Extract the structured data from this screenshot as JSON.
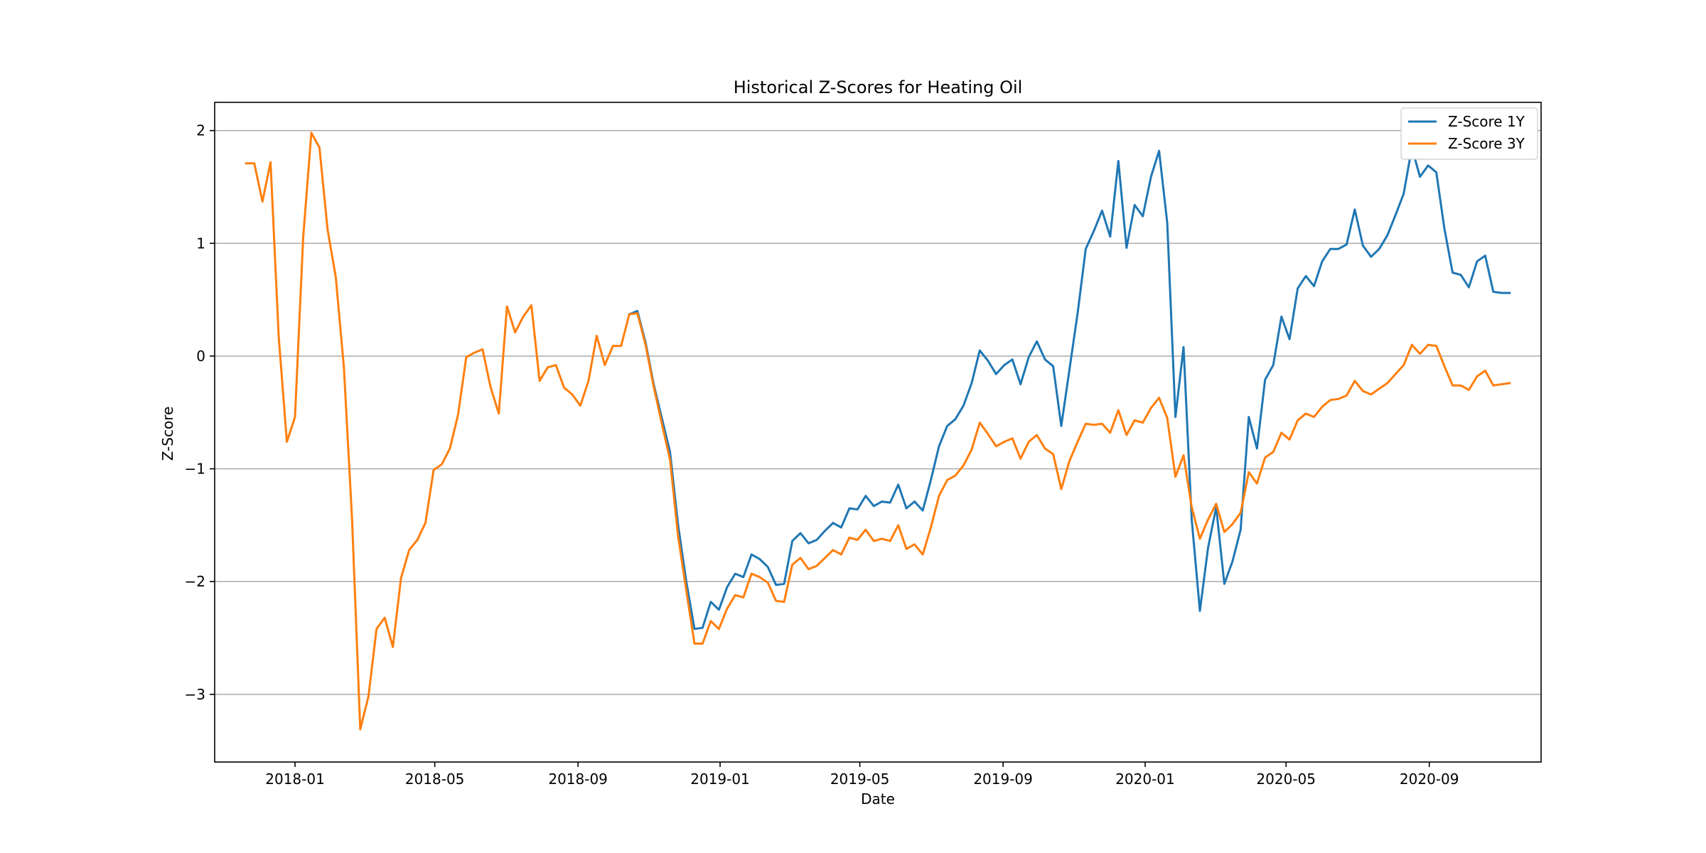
{
  "chart_data": {
    "type": "line",
    "title": "Historical Z-Scores for Heating Oil",
    "xlabel": "Date",
    "ylabel": "Z-Score",
    "grid": "horizontal",
    "legend_position": "top-right",
    "xlim": [
      "2017-10-24",
      "2020-12-06"
    ],
    "ylim": [
      -3.6,
      2.25
    ],
    "x_ticks": [
      "2018-01",
      "2018-05",
      "2018-09",
      "2019-01",
      "2019-05",
      "2019-09",
      "2020-01",
      "2020-05",
      "2020-09"
    ],
    "y_ticks": [
      2,
      1,
      0,
      -1,
      -2,
      -3
    ],
    "y_tick_labels": [
      "2",
      "1",
      "0",
      "−1",
      "−2",
      "−3"
    ],
    "series": [
      {
        "name": "Z-Score 1Y",
        "color": "#1f77b4",
        "points": [
          [
            "2018-10-15",
            0.37
          ],
          [
            "2018-10-22",
            0.4
          ],
          [
            "2018-10-29",
            0.12
          ],
          [
            "2018-11-05",
            -0.25
          ],
          [
            "2018-11-12",
            -0.55
          ],
          [
            "2018-11-19",
            -0.85
          ],
          [
            "2018-11-26",
            -1.5
          ],
          [
            "2018-12-03",
            -2.0
          ],
          [
            "2018-12-10",
            -2.42
          ],
          [
            "2018-12-17",
            -2.41
          ],
          [
            "2018-12-24",
            -2.18
          ],
          [
            "2018-12-31",
            -2.25
          ],
          [
            "2019-01-07",
            -2.05
          ],
          [
            "2019-01-14",
            -1.93
          ],
          [
            "2019-01-21",
            -1.96
          ],
          [
            "2019-01-28",
            -1.76
          ],
          [
            "2019-02-04",
            -1.8
          ],
          [
            "2019-02-11",
            -1.87
          ],
          [
            "2019-02-18",
            -2.03
          ],
          [
            "2019-02-25",
            -2.02
          ],
          [
            "2019-03-04",
            -1.64
          ],
          [
            "2019-03-11",
            -1.57
          ],
          [
            "2019-03-18",
            -1.66
          ],
          [
            "2019-03-25",
            -1.63
          ],
          [
            "2019-04-01",
            -1.55
          ],
          [
            "2019-04-08",
            -1.48
          ],
          [
            "2019-04-15",
            -1.52
          ],
          [
            "2019-04-22",
            -1.35
          ],
          [
            "2019-04-29",
            -1.36
          ],
          [
            "2019-05-06",
            -1.24
          ],
          [
            "2019-05-13",
            -1.33
          ],
          [
            "2019-05-20",
            -1.29
          ],
          [
            "2019-05-27",
            -1.3
          ],
          [
            "2019-06-03",
            -1.14
          ],
          [
            "2019-06-10",
            -1.35
          ],
          [
            "2019-06-17",
            -1.29
          ],
          [
            "2019-06-24",
            -1.37
          ],
          [
            "2019-07-01",
            -1.1
          ],
          [
            "2019-07-08",
            -0.8
          ],
          [
            "2019-07-15",
            -0.62
          ],
          [
            "2019-07-22",
            -0.56
          ],
          [
            "2019-07-29",
            -0.44
          ],
          [
            "2019-08-05",
            -0.24
          ],
          [
            "2019-08-12",
            0.05
          ],
          [
            "2019-08-19",
            -0.04
          ],
          [
            "2019-08-26",
            -0.16
          ],
          [
            "2019-09-02",
            -0.08
          ],
          [
            "2019-09-09",
            -0.03
          ],
          [
            "2019-09-16",
            -0.25
          ],
          [
            "2019-09-23",
            -0.01
          ],
          [
            "2019-09-30",
            0.13
          ],
          [
            "2019-10-07",
            -0.03
          ],
          [
            "2019-10-14",
            -0.09
          ],
          [
            "2019-10-21",
            -0.62
          ],
          [
            "2019-10-28",
            -0.12
          ],
          [
            "2019-11-04",
            0.38
          ],
          [
            "2019-11-11",
            0.95
          ],
          [
            "2019-11-18",
            1.11
          ],
          [
            "2019-11-25",
            1.29
          ],
          [
            "2019-12-02",
            1.06
          ],
          [
            "2019-12-09",
            1.73
          ],
          [
            "2019-12-16",
            0.96
          ],
          [
            "2019-12-23",
            1.34
          ],
          [
            "2019-12-30",
            1.24
          ],
          [
            "2020-01-06",
            1.59
          ],
          [
            "2020-01-13",
            1.82
          ],
          [
            "2020-01-20",
            1.18
          ],
          [
            "2020-01-27",
            -0.54
          ],
          [
            "2020-02-03",
            0.08
          ],
          [
            "2020-02-10",
            -1.45
          ],
          [
            "2020-02-17",
            -2.26
          ],
          [
            "2020-02-24",
            -1.7
          ],
          [
            "2020-03-02",
            -1.34
          ],
          [
            "2020-03-09",
            -2.02
          ],
          [
            "2020-03-16",
            -1.82
          ],
          [
            "2020-03-23",
            -1.54
          ],
          [
            "2020-03-30",
            -0.54
          ],
          [
            "2020-04-06",
            -0.82
          ],
          [
            "2020-04-13",
            -0.21
          ],
          [
            "2020-04-20",
            -0.08
          ],
          [
            "2020-04-27",
            0.35
          ],
          [
            "2020-05-04",
            0.15
          ],
          [
            "2020-05-11",
            0.6
          ],
          [
            "2020-05-18",
            0.71
          ],
          [
            "2020-05-25",
            0.62
          ],
          [
            "2020-06-01",
            0.84
          ],
          [
            "2020-06-08",
            0.95
          ],
          [
            "2020-06-15",
            0.95
          ],
          [
            "2020-06-22",
            0.99
          ],
          [
            "2020-06-29",
            1.3
          ],
          [
            "2020-07-06",
            0.98
          ],
          [
            "2020-07-13",
            0.88
          ],
          [
            "2020-07-20",
            0.95
          ],
          [
            "2020-07-27",
            1.07
          ],
          [
            "2020-08-03",
            1.25
          ],
          [
            "2020-08-10",
            1.44
          ],
          [
            "2020-08-17",
            1.85
          ],
          [
            "2020-08-24",
            1.59
          ],
          [
            "2020-08-31",
            1.69
          ],
          [
            "2020-09-07",
            1.63
          ],
          [
            "2020-09-14",
            1.13
          ],
          [
            "2020-09-21",
            0.74
          ],
          [
            "2020-09-28",
            0.72
          ],
          [
            "2020-10-05",
            0.61
          ],
          [
            "2020-10-12",
            0.84
          ],
          [
            "2020-10-19",
            0.89
          ],
          [
            "2020-10-26",
            0.57
          ],
          [
            "2020-11-02",
            0.56
          ],
          [
            "2020-11-09",
            0.56
          ]
        ]
      },
      {
        "name": "Z-Score 3Y",
        "color": "#ff7f0e",
        "points": [
          [
            "2017-11-20",
            1.71
          ],
          [
            "2017-11-27",
            1.71
          ],
          [
            "2017-12-04",
            1.37
          ],
          [
            "2017-12-11",
            1.72
          ],
          [
            "2017-12-18",
            0.17
          ],
          [
            "2017-12-25",
            -0.76
          ],
          [
            "2018-01-01",
            -0.54
          ],
          [
            "2018-01-08",
            1.05
          ],
          [
            "2018-01-15",
            1.98
          ],
          [
            "2018-01-22",
            1.85
          ],
          [
            "2018-01-29",
            1.12
          ],
          [
            "2018-02-05",
            0.7
          ],
          [
            "2018-02-12",
            -0.1
          ],
          [
            "2018-02-19",
            -1.45
          ],
          [
            "2018-02-26",
            -3.31
          ],
          [
            "2018-03-05",
            -3.02
          ],
          [
            "2018-03-12",
            -2.42
          ],
          [
            "2018-03-19",
            -2.32
          ],
          [
            "2018-03-26",
            -2.58
          ],
          [
            "2018-04-02",
            -1.97
          ],
          [
            "2018-04-09",
            -1.72
          ],
          [
            "2018-04-16",
            -1.63
          ],
          [
            "2018-04-23",
            -1.48
          ],
          [
            "2018-04-30",
            -1.01
          ],
          [
            "2018-05-07",
            -0.96
          ],
          [
            "2018-05-14",
            -0.82
          ],
          [
            "2018-05-21",
            -0.52
          ],
          [
            "2018-05-28",
            -0.01
          ],
          [
            "2018-06-04",
            0.03
          ],
          [
            "2018-06-11",
            0.06
          ],
          [
            "2018-06-18",
            -0.28
          ],
          [
            "2018-06-25",
            -0.51
          ],
          [
            "2018-07-02",
            0.44
          ],
          [
            "2018-07-09",
            0.21
          ],
          [
            "2018-07-16",
            0.35
          ],
          [
            "2018-07-23",
            0.45
          ],
          [
            "2018-07-30",
            -0.22
          ],
          [
            "2018-08-06",
            -0.1
          ],
          [
            "2018-08-13",
            -0.08
          ],
          [
            "2018-08-20",
            -0.28
          ],
          [
            "2018-08-27",
            -0.34
          ],
          [
            "2018-09-03",
            -0.44
          ],
          [
            "2018-09-10",
            -0.22
          ],
          [
            "2018-09-17",
            0.18
          ],
          [
            "2018-09-24",
            -0.08
          ],
          [
            "2018-10-01",
            0.09
          ],
          [
            "2018-10-08",
            0.09
          ],
          [
            "2018-10-15",
            0.37
          ],
          [
            "2018-10-22",
            0.38
          ],
          [
            "2018-10-29",
            0.1
          ],
          [
            "2018-11-05",
            -0.27
          ],
          [
            "2018-11-12",
            -0.6
          ],
          [
            "2018-11-19",
            -0.92
          ],
          [
            "2018-11-26",
            -1.6
          ],
          [
            "2018-12-03",
            -2.08
          ],
          [
            "2018-12-10",
            -2.55
          ],
          [
            "2018-12-17",
            -2.55
          ],
          [
            "2018-12-24",
            -2.35
          ],
          [
            "2018-12-31",
            -2.42
          ],
          [
            "2019-01-07",
            -2.24
          ],
          [
            "2019-01-14",
            -2.12
          ],
          [
            "2019-01-21",
            -2.14
          ],
          [
            "2019-01-28",
            -1.93
          ],
          [
            "2019-02-04",
            -1.96
          ],
          [
            "2019-02-11",
            -2.01
          ],
          [
            "2019-02-18",
            -2.17
          ],
          [
            "2019-02-25",
            -2.18
          ],
          [
            "2019-03-04",
            -1.85
          ],
          [
            "2019-03-11",
            -1.79
          ],
          [
            "2019-03-18",
            -1.89
          ],
          [
            "2019-03-25",
            -1.86
          ],
          [
            "2019-04-01",
            -1.79
          ],
          [
            "2019-04-08",
            -1.72
          ],
          [
            "2019-04-15",
            -1.76
          ],
          [
            "2019-04-22",
            -1.61
          ],
          [
            "2019-04-29",
            -1.63
          ],
          [
            "2019-05-06",
            -1.54
          ],
          [
            "2019-05-13",
            -1.64
          ],
          [
            "2019-05-20",
            -1.62
          ],
          [
            "2019-05-27",
            -1.64
          ],
          [
            "2019-06-03",
            -1.5
          ],
          [
            "2019-06-10",
            -1.71
          ],
          [
            "2019-06-17",
            -1.67
          ],
          [
            "2019-06-24",
            -1.76
          ],
          [
            "2019-07-01",
            -1.52
          ],
          [
            "2019-07-08",
            -1.24
          ],
          [
            "2019-07-15",
            -1.1
          ],
          [
            "2019-07-22",
            -1.06
          ],
          [
            "2019-07-29",
            -0.97
          ],
          [
            "2019-08-05",
            -0.83
          ],
          [
            "2019-08-12",
            -0.59
          ],
          [
            "2019-08-19",
            -0.69
          ],
          [
            "2019-08-26",
            -0.8
          ],
          [
            "2019-09-02",
            -0.76
          ],
          [
            "2019-09-09",
            -0.73
          ],
          [
            "2019-09-16",
            -0.91
          ],
          [
            "2019-09-23",
            -0.76
          ],
          [
            "2019-09-30",
            -0.7
          ],
          [
            "2019-10-07",
            -0.82
          ],
          [
            "2019-10-14",
            -0.87
          ],
          [
            "2019-10-21",
            -1.18
          ],
          [
            "2019-10-28",
            -0.93
          ],
          [
            "2019-11-04",
            -0.76
          ],
          [
            "2019-11-11",
            -0.6
          ],
          [
            "2019-11-18",
            -0.61
          ],
          [
            "2019-11-25",
            -0.6
          ],
          [
            "2019-12-02",
            -0.68
          ],
          [
            "2019-12-09",
            -0.48
          ],
          [
            "2019-12-16",
            -0.7
          ],
          [
            "2019-12-23",
            -0.57
          ],
          [
            "2019-12-30",
            -0.59
          ],
          [
            "2020-01-06",
            -0.46
          ],
          [
            "2020-01-13",
            -0.37
          ],
          [
            "2020-01-20",
            -0.55
          ],
          [
            "2020-01-27",
            -1.07
          ],
          [
            "2020-02-03",
            -0.88
          ],
          [
            "2020-02-10",
            -1.34
          ],
          [
            "2020-02-17",
            -1.62
          ],
          [
            "2020-02-24",
            -1.45
          ],
          [
            "2020-03-02",
            -1.31
          ],
          [
            "2020-03-09",
            -1.56
          ],
          [
            "2020-03-16",
            -1.49
          ],
          [
            "2020-03-23",
            -1.39
          ],
          [
            "2020-03-30",
            -1.03
          ],
          [
            "2020-04-06",
            -1.13
          ],
          [
            "2020-04-13",
            -0.9
          ],
          [
            "2020-04-20",
            -0.85
          ],
          [
            "2020-04-27",
            -0.68
          ],
          [
            "2020-05-04",
            -0.74
          ],
          [
            "2020-05-11",
            -0.57
          ],
          [
            "2020-05-18",
            -0.51
          ],
          [
            "2020-05-25",
            -0.54
          ],
          [
            "2020-06-01",
            -0.45
          ],
          [
            "2020-06-08",
            -0.39
          ],
          [
            "2020-06-15",
            -0.38
          ],
          [
            "2020-06-22",
            -0.35
          ],
          [
            "2020-06-29",
            -0.22
          ],
          [
            "2020-07-06",
            -0.31
          ],
          [
            "2020-07-13",
            -0.34
          ],
          [
            "2020-07-20",
            -0.29
          ],
          [
            "2020-07-27",
            -0.24
          ],
          [
            "2020-08-03",
            -0.16
          ],
          [
            "2020-08-10",
            -0.08
          ],
          [
            "2020-08-17",
            0.1
          ],
          [
            "2020-08-24",
            0.02
          ],
          [
            "2020-08-31",
            0.1
          ],
          [
            "2020-09-07",
            0.09
          ],
          [
            "2020-09-14",
            -0.09
          ],
          [
            "2020-09-21",
            -0.26
          ],
          [
            "2020-09-28",
            -0.26
          ],
          [
            "2020-10-05",
            -0.3
          ],
          [
            "2020-10-12",
            -0.18
          ],
          [
            "2020-10-19",
            -0.13
          ],
          [
            "2020-10-26",
            -0.26
          ],
          [
            "2020-11-02",
            -0.25
          ],
          [
            "2020-11-09",
            -0.24
          ]
        ]
      }
    ]
  }
}
